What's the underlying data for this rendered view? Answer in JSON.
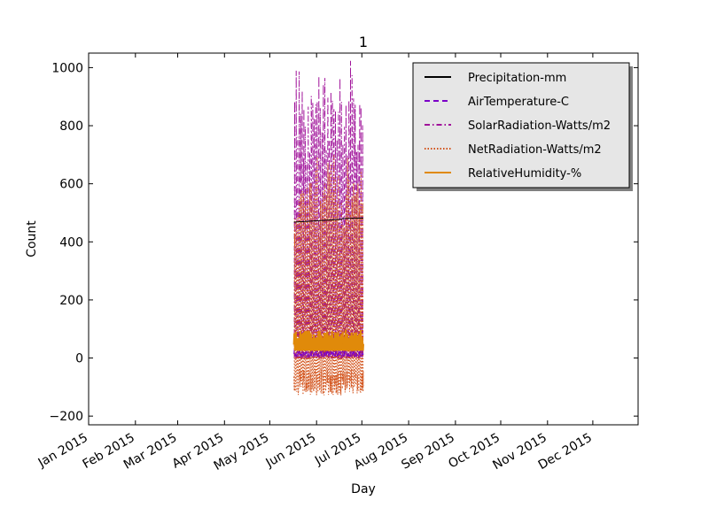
{
  "chart_data": {
    "type": "line",
    "title": "1",
    "xlabel": "Day",
    "ylabel": "Count",
    "xlim": [
      "2015-01-01",
      "2015-12-31"
    ],
    "ylim": [
      -230,
      1050
    ],
    "grid": false,
    "legend_position": "top-right",
    "x_ticks": [
      {
        "date": "2015-01-01",
        "label": "Jan 2015"
      },
      {
        "date": "2015-02-01",
        "label": "Feb 2015"
      },
      {
        "date": "2015-03-01",
        "label": "Mar 2015"
      },
      {
        "date": "2015-04-01",
        "label": "Apr 2015"
      },
      {
        "date": "2015-05-01",
        "label": "May 2015"
      },
      {
        "date": "2015-06-01",
        "label": "Jun 2015"
      },
      {
        "date": "2015-07-01",
        "label": "Jul 2015"
      },
      {
        "date": "2015-08-01",
        "label": "Aug 2015"
      },
      {
        "date": "2015-09-01",
        "label": "Sep 2015"
      },
      {
        "date": "2015-10-01",
        "label": "Oct 2015"
      },
      {
        "date": "2015-11-01",
        "label": "Nov 2015"
      },
      {
        "date": "2015-12-01",
        "label": "Dec 2015"
      }
    ],
    "y_ticks": [
      {
        "value": -200,
        "label": "−200"
      },
      {
        "value": 0,
        "label": "0"
      },
      {
        "value": 200,
        "label": "200"
      },
      {
        "value": 400,
        "label": "400"
      },
      {
        "value": 600,
        "label": "600"
      },
      {
        "value": 800,
        "label": "800"
      },
      {
        "value": 1000,
        "label": "1000"
      }
    ],
    "series": [
      {
        "name": "Precipitation-mm",
        "color": "#000000",
        "dash": "solid",
        "style": "segments",
        "segments": [
          {
            "start": "2015-05-17",
            "end": "2015-06-18",
            "y_start": 468,
            "y_end": 478
          },
          {
            "start": "2015-06-18",
            "end": "2015-07-02",
            "y_start": 480,
            "y_end": 482
          }
        ]
      },
      {
        "name": "AirTemperature-C",
        "color": "#7b00c8",
        "dash": "dashed",
        "style": "band",
        "segments": [
          {
            "start": "2015-05-17",
            "end": "2015-06-18",
            "min": 5,
            "max": 30
          },
          {
            "start": "2015-06-18",
            "end": "2015-07-02",
            "min": 5,
            "max": 30
          }
        ]
      },
      {
        "name": "SolarRadiation-Watts/m2",
        "color": "#a0139a",
        "dash": "dashdot",
        "style": "diurnal",
        "segments": [
          {
            "start": "2015-05-17",
            "end": "2015-06-18",
            "min": 0,
            "max": 1030
          },
          {
            "start": "2015-06-18",
            "end": "2015-07-02",
            "min": 0,
            "max": 1025
          }
        ]
      },
      {
        "name": "NetRadiation-Watts/m2",
        "color": "#d2521a",
        "dash": "dotted",
        "style": "diurnal",
        "segments": [
          {
            "start": "2015-05-17",
            "end": "2015-06-18",
            "min": -130,
            "max": 700
          },
          {
            "start": "2015-06-18",
            "end": "2015-07-02",
            "min": -125,
            "max": 700
          }
        ]
      },
      {
        "name": "RelativeHumidity-%",
        "color": "#e08a0a",
        "dash": "solid",
        "style": "band",
        "segments": [
          {
            "start": "2015-05-17",
            "end": "2015-06-18",
            "min": 25,
            "max": 95
          },
          {
            "start": "2015-06-18",
            "end": "2015-07-02",
            "min": 25,
            "max": 98
          }
        ]
      }
    ]
  }
}
